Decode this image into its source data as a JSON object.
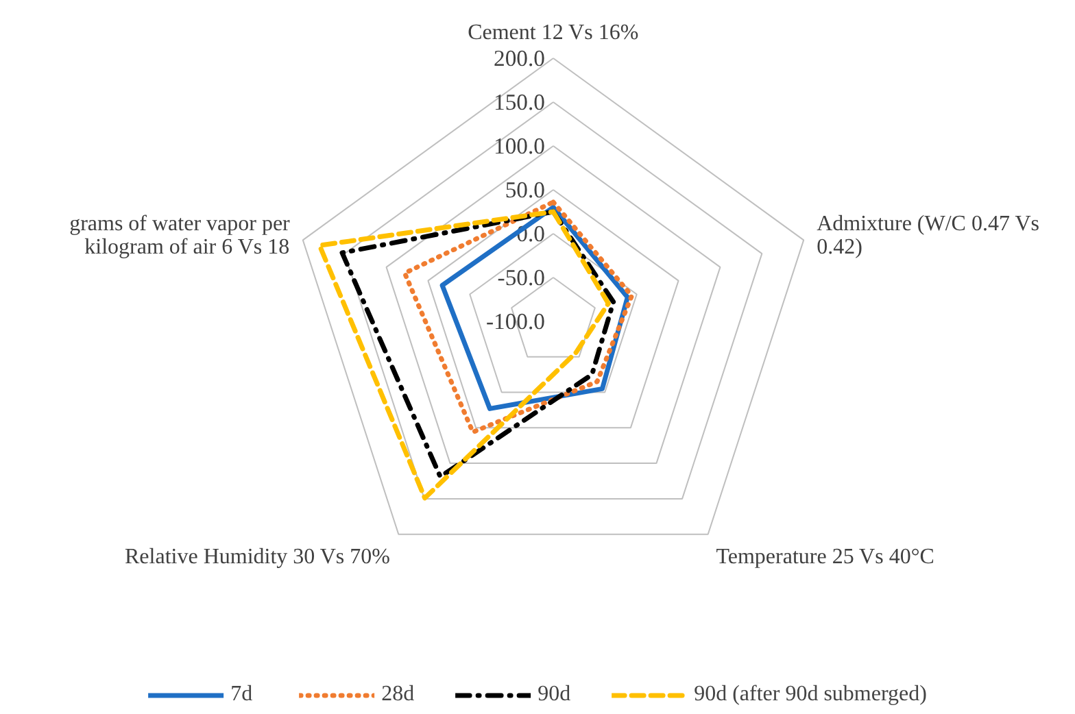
{
  "chart_data": {
    "type": "radar",
    "categories": [
      "Cement 12 Vs 16%",
      "Admixture (W/C 0.47 Vs 0.42)",
      "Temperature 25 Vs 40°C",
      "Relative Humidity 30 Vs 70%",
      "grams of water vapor per kilogram of air 6 Vs 18"
    ],
    "ylim": [
      -100,
      200
    ],
    "yticks": [
      {
        "value": -100,
        "label": "-100.0"
      },
      {
        "value": -50,
        "label": "-50.0"
      },
      {
        "value": 0,
        "label": "0.0"
      },
      {
        "value": 50,
        "label": "50.0"
      },
      {
        "value": 100,
        "label": "100.0"
      },
      {
        "value": 150,
        "label": "150.0"
      },
      {
        "value": 200,
        "label": "200.0"
      }
    ],
    "grid": true,
    "legend": "bottom",
    "marker": "none",
    "series": [
      {
        "name": "7d",
        "color": "#1f6fc5",
        "line_style": "solid",
        "values": [
          30,
          -11,
          -5,
          23,
          33
        ]
      },
      {
        "name": "28d",
        "color": "#f07c30",
        "line_style": "dotted",
        "values": [
          36,
          -6,
          -15,
          56,
          78
        ]
      },
      {
        "name": "90d",
        "color": "#000000",
        "line_style": "dashdot",
        "values": [
          25,
          -28,
          -25,
          119,
          153
        ]
      },
      {
        "name": "90d (after 90d submerged)",
        "color": "#ffc000",
        "line_style": "dashed",
        "values": [
          25,
          -34,
          -56,
          149,
          180
        ]
      }
    ]
  }
}
